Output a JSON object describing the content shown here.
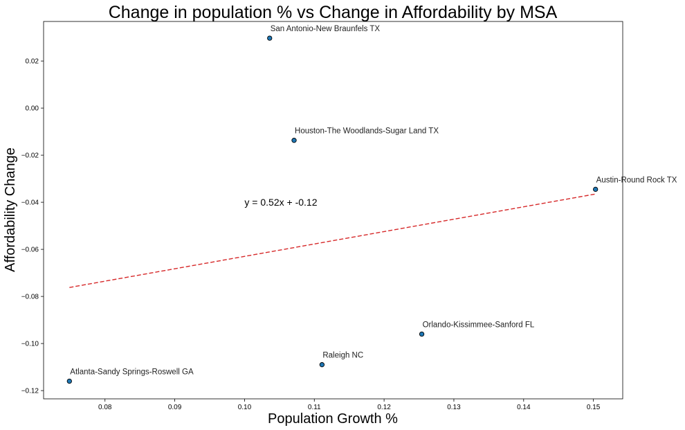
{
  "chart_data": {
    "type": "scatter",
    "title": "Change in population % vs Change in Affordability by MSA",
    "xlabel": "Population Growth %",
    "ylabel": "Affordability Change",
    "xlim": [
      0.0712,
      0.1542
    ],
    "ylim": [
      -0.1235,
      0.0368
    ],
    "xticks": [
      0.08,
      0.09,
      0.1,
      0.11,
      0.12,
      0.13,
      0.14,
      0.15
    ],
    "xtick_labels": [
      "0.08",
      "0.09",
      "0.10",
      "0.11",
      "0.12",
      "0.13",
      "0.14",
      "0.15"
    ],
    "yticks": [
      0.02,
      0.0,
      -0.02,
      -0.04,
      -0.06,
      -0.08,
      -0.1,
      -0.12
    ],
    "ytick_labels": [
      "0.02",
      "0.00",
      "−0.02",
      "−0.04",
      "−0.06",
      "−0.08",
      "−0.10",
      "−0.12"
    ],
    "grid": false,
    "points": [
      {
        "label": "San Antonio-New Braunfels TX",
        "x": 0.1036,
        "y": 0.0297
      },
      {
        "label": "Houston-The Woodlands-Sugar Land TX",
        "x": 0.1071,
        "y": -0.0137
      },
      {
        "label": "Austin-Round Rock TX",
        "x": 0.1503,
        "y": -0.0345
      },
      {
        "label": "Orlando-Kissimmee-Sanford FL",
        "x": 0.1254,
        "y": -0.096
      },
      {
        "label": "Raleigh NC",
        "x": 0.1111,
        "y": -0.109
      },
      {
        "label": "Atlanta-Sandy Springs-Roswell GA",
        "x": 0.0749,
        "y": -0.116
      }
    ],
    "regression": {
      "equation": "y = 0.52x + -0.12",
      "equation_anchor": {
        "x": 0.1,
        "y": -0.04
      },
      "x_start": 0.0749,
      "x_end": 0.1503,
      "y_start": -0.0762,
      "y_end": -0.0365
    },
    "colors": {
      "marker_fill": "#1f77b4",
      "marker_edge": "#000000",
      "regression_line": "#d62728"
    }
  }
}
